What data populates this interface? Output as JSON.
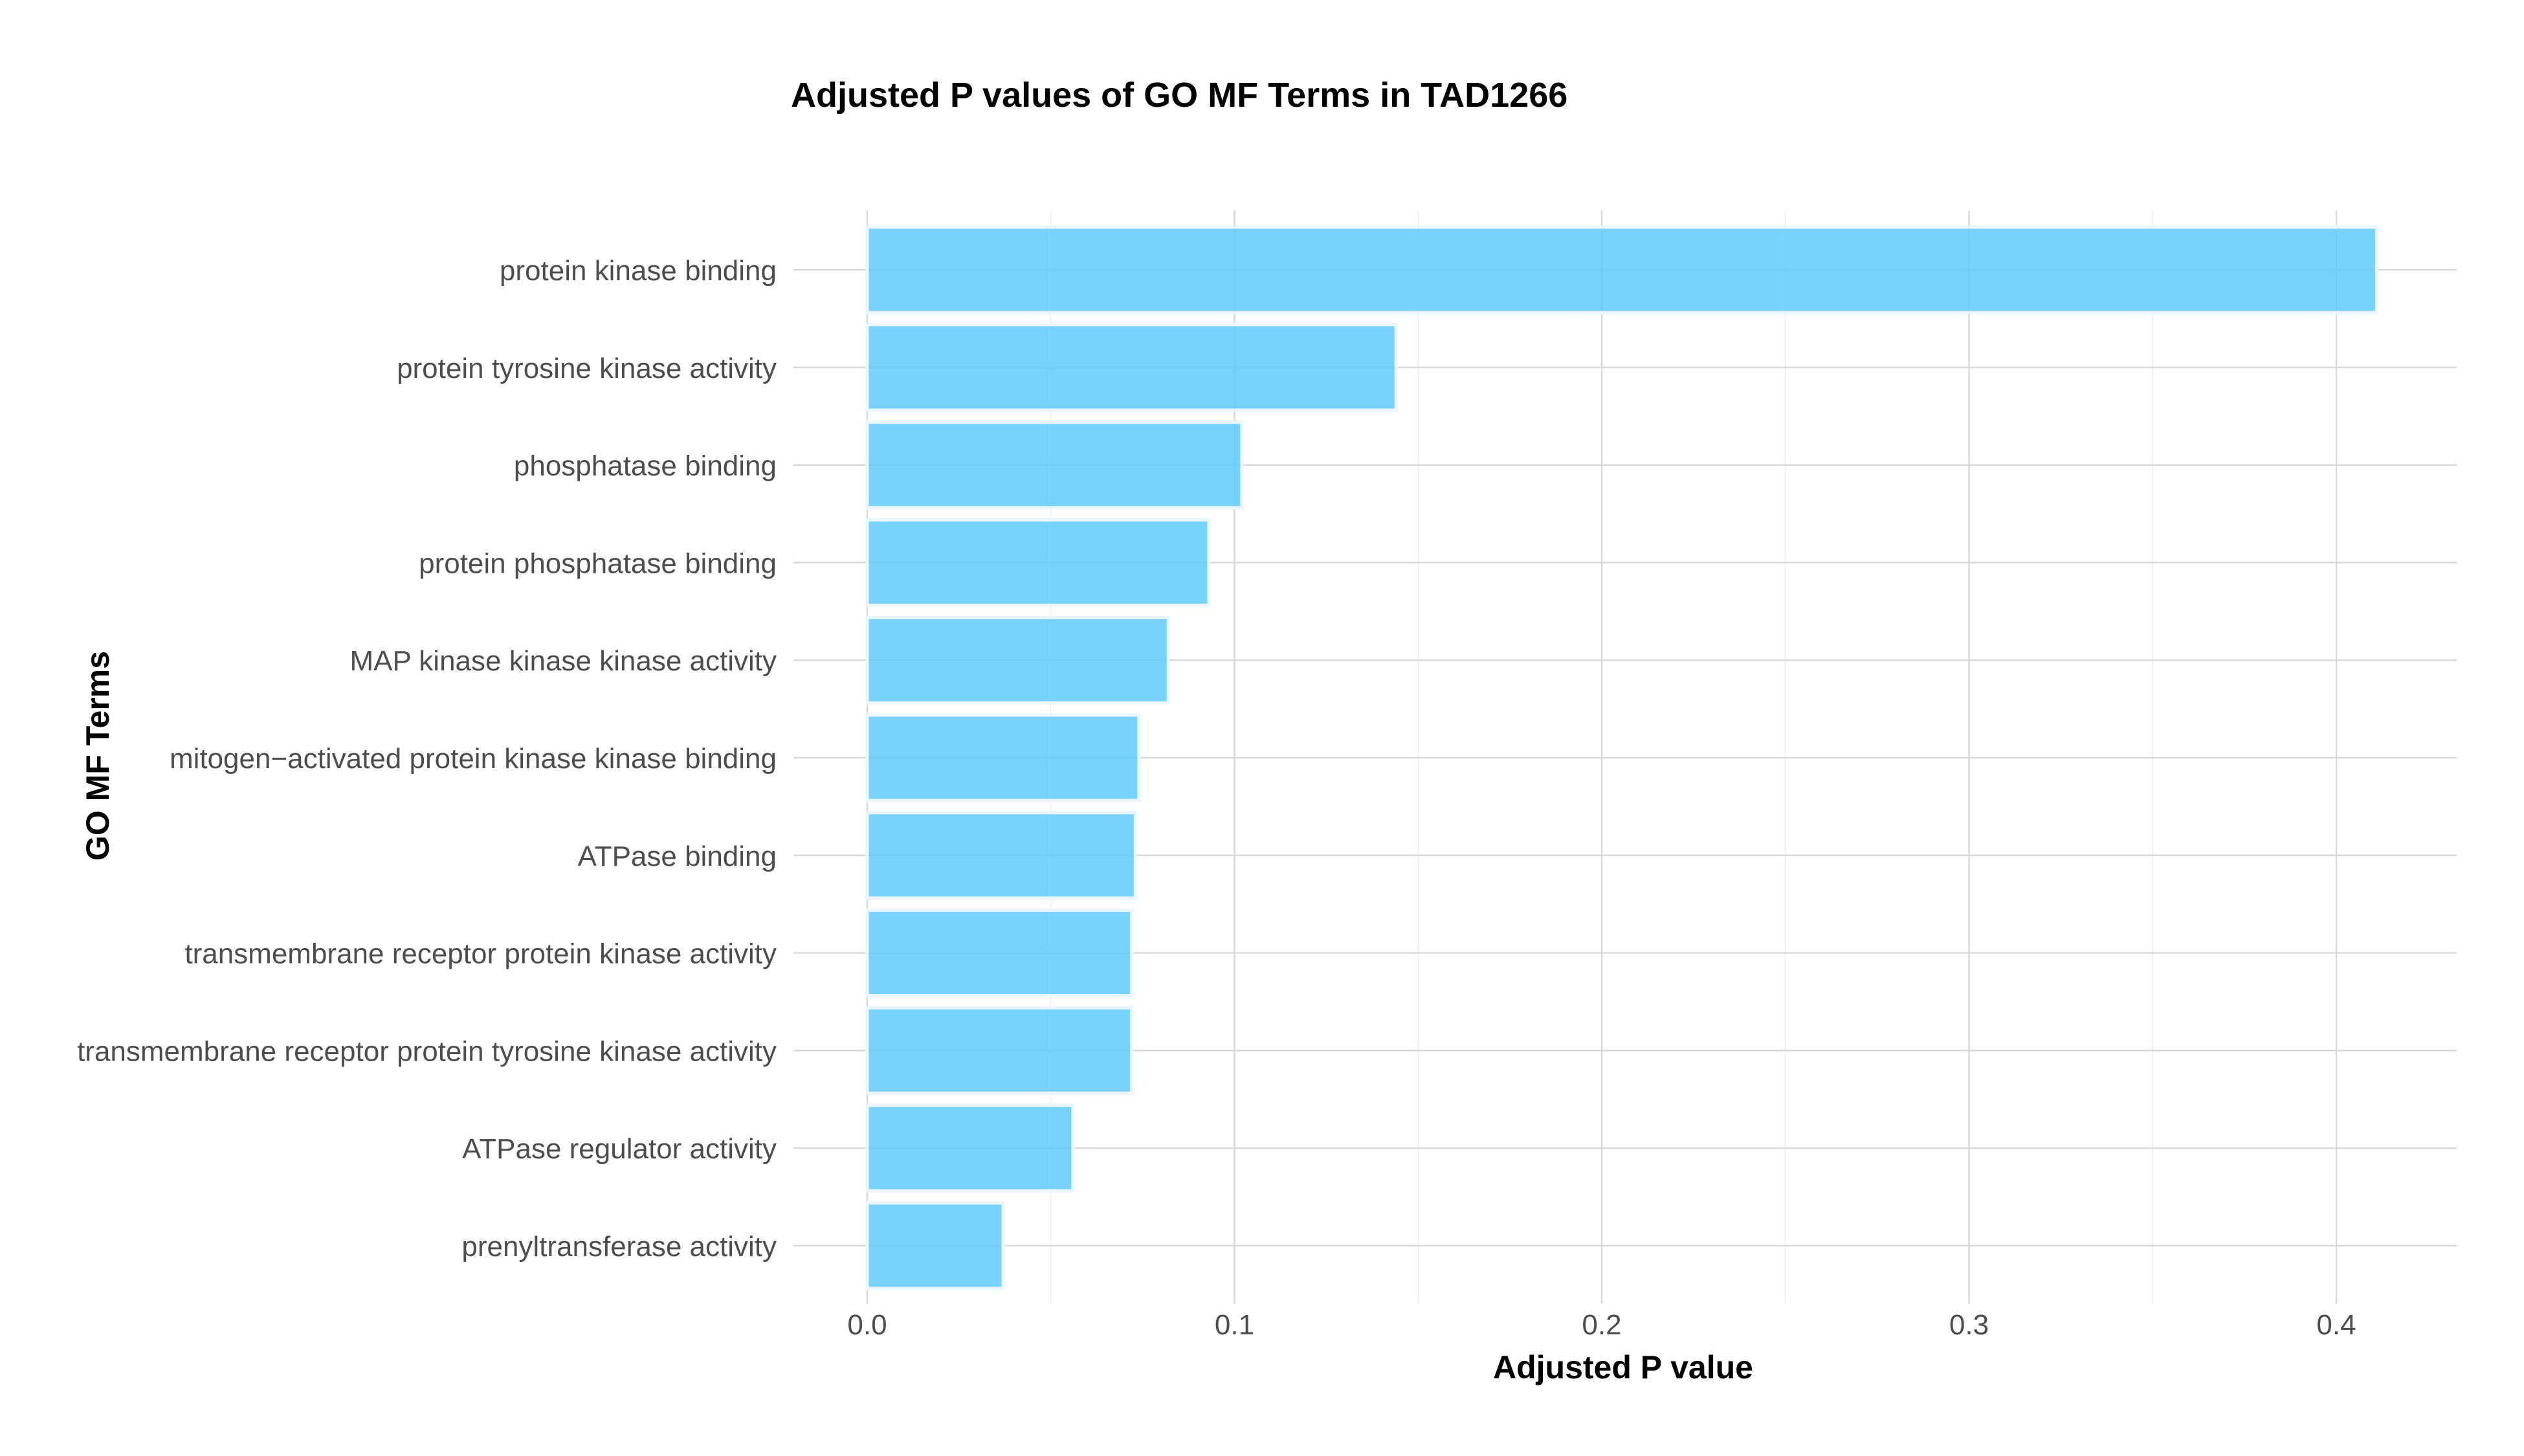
{
  "chart_data": {
    "type": "bar",
    "orientation": "horizontal",
    "title": "Adjusted P values of GO MF Terms in TAD1266",
    "xlabel": "Adjusted P value",
    "ylabel": "GO MF Terms",
    "categories": [
      "protein kinase binding",
      "protein tyrosine kinase activity",
      "phosphatase binding",
      "protein phosphatase binding",
      "MAP kinase kinase kinase activity",
      "mitogen−activated protein kinase kinase binding",
      "ATPase binding",
      "transmembrane receptor protein kinase activity",
      "transmembrane receptor protein tyrosine kinase activity",
      "ATPase regulator activity",
      "prenyltransferase activity"
    ],
    "values": [
      0.411,
      0.144,
      0.102,
      0.093,
      0.082,
      0.074,
      0.073,
      0.072,
      0.072,
      0.056,
      0.037
    ],
    "xlim": [
      0,
      0.43
    ],
    "xticks": [
      0,
      0.1,
      0.2,
      0.3,
      0.4
    ],
    "xtick_labels": [
      "0.0",
      "0.1",
      "0.2",
      "0.3",
      "0.4"
    ],
    "grid": true,
    "legend": "none",
    "bar_color": "#5bc8fc"
  }
}
